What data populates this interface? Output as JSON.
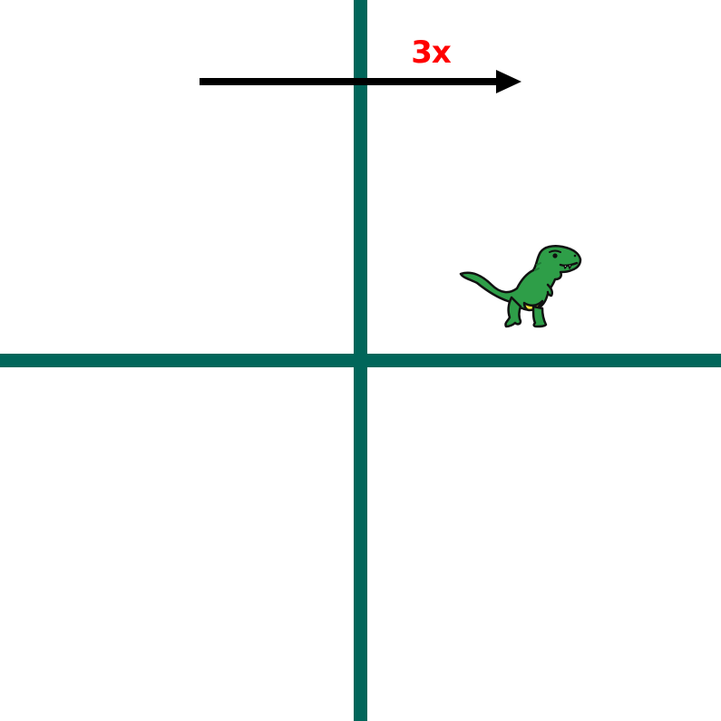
{
  "diagram": {
    "multiplier_label": "3x",
    "arrow_direction": "right",
    "character_icon": "t-rex-dinosaur-icon",
    "character_quadrant": "top-right"
  },
  "colors": {
    "background": "#ffffff",
    "axis": "#00665a",
    "arrow": "#000000",
    "label": "#ff0000",
    "dino_body": "#2e9e48",
    "dino_outline": "#111111",
    "dino_belly": "#f2e53a"
  }
}
